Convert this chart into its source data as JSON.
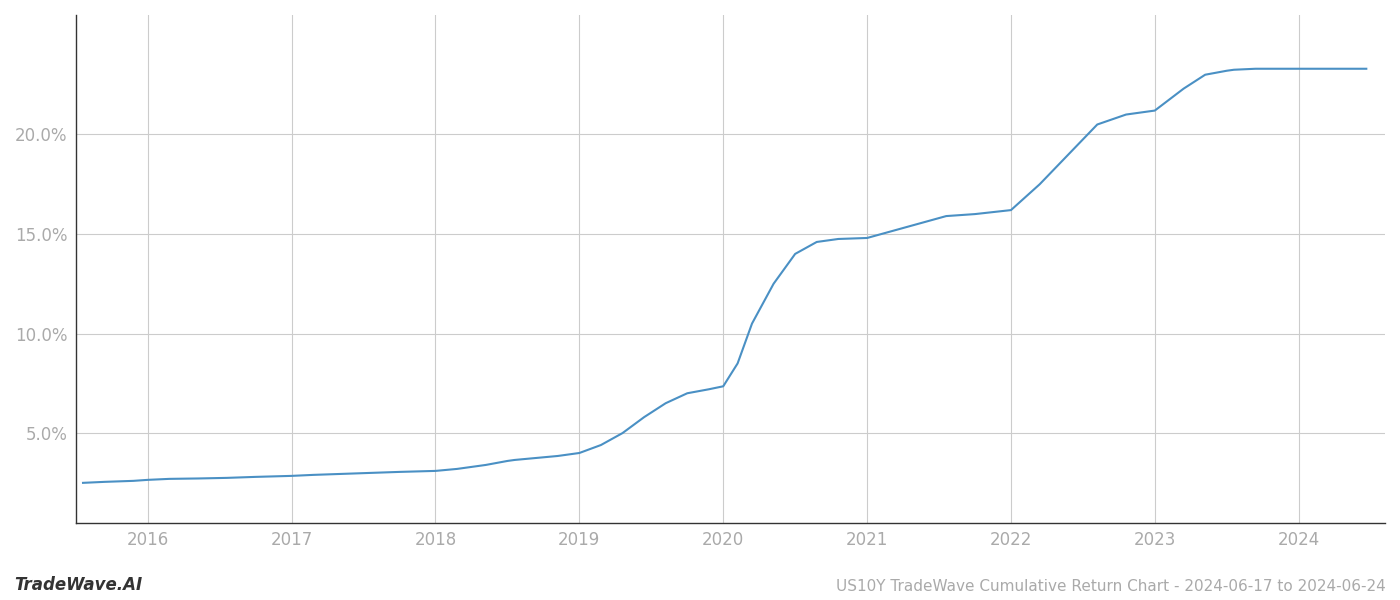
{
  "title": "US10Y TradeWave Cumulative Return Chart - 2024-06-17 to 2024-06-24",
  "watermark": "TradeWave.AI",
  "line_color": "#4a90c4",
  "line_width": 1.5,
  "background_color": "#ffffff",
  "grid_color": "#cccccc",
  "x_years": [
    2016,
    2017,
    2018,
    2019,
    2020,
    2021,
    2022,
    2023,
    2024
  ],
  "x_data": [
    2015.55,
    2015.7,
    2015.9,
    2016.0,
    2016.15,
    2016.35,
    2016.55,
    2016.75,
    2017.0,
    2017.15,
    2017.35,
    2017.55,
    2017.75,
    2018.0,
    2018.15,
    2018.35,
    2018.5,
    2018.55,
    2018.7,
    2018.85,
    2019.0,
    2019.15,
    2019.3,
    2019.45,
    2019.6,
    2019.75,
    2019.9,
    2020.0,
    2020.1,
    2020.2,
    2020.35,
    2020.5,
    2020.65,
    2020.8,
    2021.0,
    2021.15,
    2021.35,
    2021.55,
    2021.75,
    2022.0,
    2022.2,
    2022.4,
    2022.6,
    2022.8,
    2023.0,
    2023.2,
    2023.35,
    2023.5,
    2023.55,
    2023.7,
    2023.85,
    2024.0,
    2024.2,
    2024.47
  ],
  "y_data": [
    2.5,
    2.55,
    2.6,
    2.65,
    2.7,
    2.72,
    2.75,
    2.8,
    2.85,
    2.9,
    2.95,
    3.0,
    3.05,
    3.1,
    3.2,
    3.4,
    3.6,
    3.65,
    3.75,
    3.85,
    4.0,
    4.4,
    5.0,
    5.8,
    6.5,
    7.0,
    7.2,
    7.35,
    8.5,
    10.5,
    12.5,
    14.0,
    14.6,
    14.75,
    14.8,
    15.1,
    15.5,
    15.9,
    16.0,
    16.2,
    17.5,
    19.0,
    20.5,
    21.0,
    21.2,
    22.3,
    23.0,
    23.2,
    23.25,
    23.3,
    23.3,
    23.3,
    23.3,
    23.3
  ],
  "yticks": [
    5.0,
    10.0,
    15.0,
    20.0
  ],
  "ylim": [
    0.5,
    26.0
  ],
  "xlim": [
    2015.5,
    2024.6
  ],
  "title_fontsize": 11,
  "tick_fontsize": 12,
  "watermark_fontsize": 12,
  "label_color": "#aaaaaa",
  "spine_color": "#333333"
}
